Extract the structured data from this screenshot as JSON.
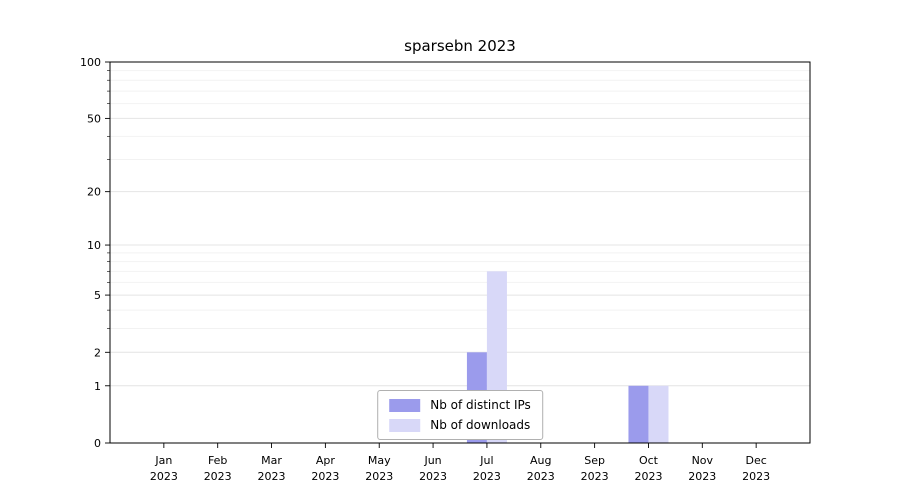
{
  "chart_data": {
    "type": "bar",
    "title": "sparsebn 2023",
    "categories": [
      "Jan 2023",
      "Feb 2023",
      "Mar 2023",
      "Apr 2023",
      "May 2023",
      "Jun 2023",
      "Jul 2023",
      "Aug 2023",
      "Sep 2023",
      "Oct 2023",
      "Nov 2023",
      "Dec 2023"
    ],
    "series": [
      {
        "name": "Nb of distinct IPs",
        "color": "#9b9bec",
        "values": [
          0,
          0,
          0,
          0,
          0,
          0,
          2,
          0,
          0,
          1,
          0,
          0
        ]
      },
      {
        "name": "Nb of downloads",
        "color": "#d8d8f8",
        "values": [
          0,
          0,
          0,
          0,
          0,
          0,
          7,
          0,
          0,
          1,
          0,
          0
        ]
      }
    ],
    "yticks": [
      0,
      1,
      2,
      5,
      10,
      20,
      50,
      100
    ],
    "y_minor_ticks": [
      3,
      4,
      6,
      7,
      8,
      9,
      30,
      40,
      60,
      70,
      80,
      90
    ],
    "ylim": [
      0,
      100
    ],
    "scale": "log1p",
    "grid": true,
    "legend_position": "lower center",
    "axis_color": "#000000",
    "grid_major_color": "#e4e4e4",
    "grid_minor_color": "#f2f2f2",
    "legend_border_color": "#b0b0b0"
  }
}
